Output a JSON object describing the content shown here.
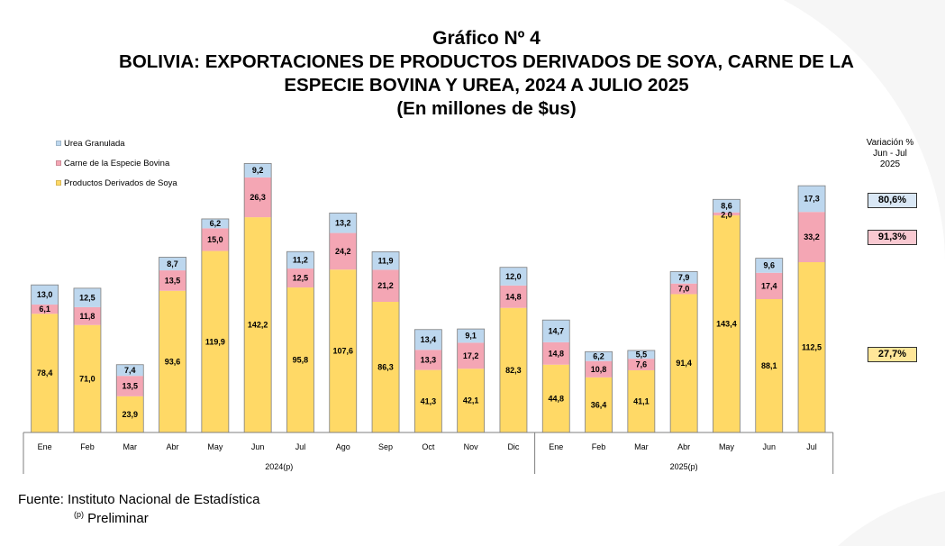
{
  "titles": {
    "line1": "Gráfico Nº 4",
    "line2": "BOLIVIA: EXPORTACIONES DE PRODUCTOS DERIVADOS DE SOYA, CARNE DE LA",
    "line3": "ESPECIE BOVINA Y UREA, 2024 A JULIO 2025",
    "line4": "(En millones de $us)"
  },
  "legend": {
    "items": [
      {
        "label": "Urea Granulada",
        "color": "#bdd7ee"
      },
      {
        "label": "Carne de la Especie Bovina",
        "color": "#f4a6b4"
      },
      {
        "label": "Productos Derivados de Soya",
        "color": "#ffd966"
      }
    ]
  },
  "variation": {
    "header_line1": "Variación %",
    "header_line2": "Jun - Jul",
    "header_line3": "2025",
    "urea": "80,6%",
    "carne": "91,3%",
    "soya": "27,7%"
  },
  "footer": {
    "source": "Fuente: Instituto Nacional de Estadística",
    "note_marker": "(p)",
    "note_text": "Preliminar"
  },
  "chart_data": {
    "type": "bar",
    "stacked": true,
    "categories": [
      "Ene",
      "Feb",
      "Mar",
      "Abr",
      "May",
      "Jun",
      "Jul",
      "Ago",
      "Sep",
      "Oct",
      "Nov",
      "Dic",
      "Ene",
      "Feb",
      "Mar",
      "Abr",
      "May",
      "Jun",
      "Jul"
    ],
    "groups": [
      {
        "label": "2024(p)",
        "count": 12
      },
      {
        "label": "2025(p)",
        "count": 7
      }
    ],
    "series": [
      {
        "name": "Productos Derivados de Soya",
        "color": "#ffd966",
        "values": [
          78.4,
          71.0,
          23.9,
          93.6,
          119.9,
          142.2,
          95.8,
          107.6,
          86.3,
          41.3,
          42.1,
          82.3,
          44.8,
          36.4,
          41.1,
          91.4,
          143.4,
          88.1,
          112.5
        ],
        "labels": [
          "78,4",
          "71,0",
          "23,9",
          "93,6",
          "119,9",
          "142,2",
          "95,8",
          "107,6",
          "86,3",
          "41,3",
          "42,1",
          "82,3",
          "44,8",
          "36,4",
          "41,1",
          "91,4",
          "143,4",
          "88,1",
          "112,5"
        ]
      },
      {
        "name": "Carne de la Especie Bovina",
        "color": "#f4a6b4",
        "values": [
          6.1,
          11.8,
          13.5,
          13.5,
          15.0,
          26.3,
          12.5,
          24.2,
          21.2,
          13.3,
          17.2,
          14.8,
          14.8,
          10.8,
          7.6,
          7.0,
          2.0,
          17.4,
          33.2
        ],
        "labels": [
          "6,1",
          "11,8",
          "13,5",
          "13,5",
          "15,0",
          "26,3",
          "12,5",
          "24,2",
          "21,2",
          "13,3",
          "17,2",
          "14,8",
          "14,8",
          "10,8",
          "7,6",
          "7,0",
          "2,0",
          "17,4",
          "33,2"
        ]
      },
      {
        "name": "Urea Granulada",
        "color": "#bdd7ee",
        "values": [
          13.0,
          12.5,
          7.4,
          8.7,
          6.2,
          9.2,
          11.2,
          13.2,
          11.9,
          13.4,
          9.1,
          12.0,
          14.7,
          6.2,
          5.5,
          7.9,
          8.6,
          9.6,
          17.3
        ],
        "labels": [
          "13,0",
          "12,5",
          "7,4",
          "8,7",
          "6,2",
          "9,2",
          "11,2",
          "13,2",
          "11,9",
          "13,4",
          "9,1",
          "12,0",
          "14,7",
          "6,2",
          "5,5",
          "7,9",
          "8,6",
          "9,6",
          "17,3"
        ]
      }
    ]
  }
}
